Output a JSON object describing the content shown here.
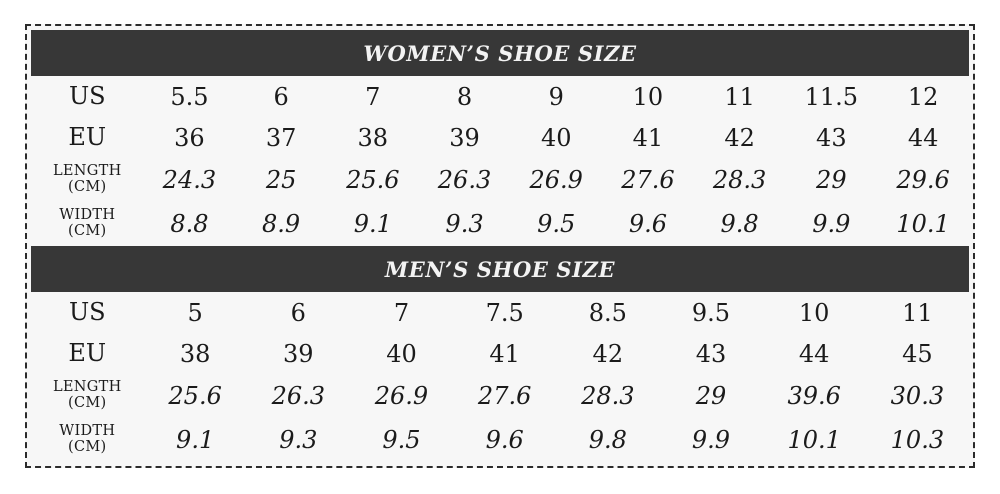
{
  "colors": {
    "header_bg": "#373737",
    "header_fg": "#f3f3f3",
    "body_bg": "#f7f7f7",
    "border_color": "#2b2b2b",
    "text_color": "#1b1b1b"
  },
  "chart_data": [
    {
      "type": "table",
      "title": "WOMEN’S SHOE SIZE",
      "rows": [
        {
          "label": "US",
          "sub": "",
          "italic": false,
          "values": [
            "5.5",
            "6",
            "7",
            "8",
            "9",
            "10",
            "11",
            "11.5",
            "12"
          ]
        },
        {
          "label": "EU",
          "sub": "",
          "italic": false,
          "values": [
            "36",
            "37",
            "38",
            "39",
            "40",
            "41",
            "42",
            "43",
            "44"
          ]
        },
        {
          "label": "LENGTH",
          "sub": "(CM)",
          "italic": true,
          "values": [
            "24.3",
            "25",
            "25.6",
            "26.3",
            "26.9",
            "27.6",
            "28.3",
            "29",
            "29.6"
          ]
        },
        {
          "label": "WIDTH",
          "sub": "(CM)",
          "italic": true,
          "values": [
            "8.8",
            "8.9",
            "9.1",
            "9.3",
            "9.5",
            "9.6",
            "9.8",
            "9.9",
            "10.1"
          ]
        }
      ]
    },
    {
      "type": "table",
      "title": "MEN’S SHOE SIZE",
      "rows": [
        {
          "label": "US",
          "sub": "",
          "italic": false,
          "values": [
            "5",
            "6",
            "7",
            "7.5",
            "8.5",
            "9.5",
            "10",
            "11"
          ]
        },
        {
          "label": "EU",
          "sub": "",
          "italic": false,
          "values": [
            "38",
            "39",
            "40",
            "41",
            "42",
            "43",
            "44",
            "45"
          ]
        },
        {
          "label": "LENGTH",
          "sub": "(CM)",
          "italic": true,
          "values": [
            "25.6",
            "26.3",
            "26.9",
            "27.6",
            "28.3",
            "29",
            "39.6",
            "30.3"
          ]
        },
        {
          "label": "WIDTH",
          "sub": "(CM)",
          "italic": true,
          "values": [
            "9.1",
            "9.3",
            "9.5",
            "9.6",
            "9.8",
            "9.9",
            "10.1",
            "10.3"
          ]
        }
      ]
    }
  ]
}
